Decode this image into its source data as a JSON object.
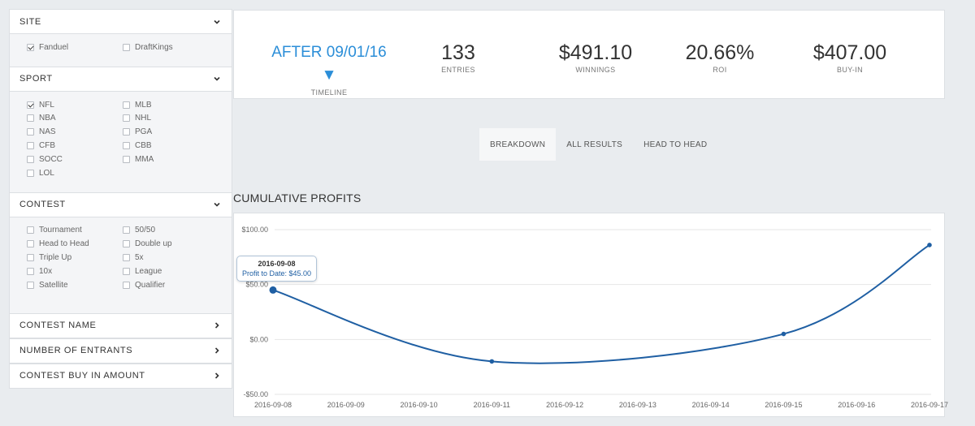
{
  "sidebar": {
    "site": {
      "title": "SITE",
      "options": [
        {
          "label": "Fanduel",
          "checked": true
        },
        {
          "label": "DraftKings",
          "checked": false
        }
      ]
    },
    "sport": {
      "title": "SPORT",
      "options": [
        {
          "label": "NFL",
          "checked": true
        },
        {
          "label": "MLB",
          "checked": false
        },
        {
          "label": "NBA",
          "checked": false
        },
        {
          "label": "NHL",
          "checked": false
        },
        {
          "label": "NAS",
          "checked": false
        },
        {
          "label": "PGA",
          "checked": false
        },
        {
          "label": "CFB",
          "checked": false
        },
        {
          "label": "CBB",
          "checked": false
        },
        {
          "label": "SOCC",
          "checked": false
        },
        {
          "label": "MMA",
          "checked": false
        },
        {
          "label": "LOL",
          "checked": false
        }
      ]
    },
    "contest": {
      "title": "CONTEST",
      "options": [
        {
          "label": "Tournament",
          "checked": false
        },
        {
          "label": "50/50",
          "checked": false
        },
        {
          "label": "Head to Head",
          "checked": false
        },
        {
          "label": "Double up",
          "checked": false
        },
        {
          "label": "Triple Up",
          "checked": false
        },
        {
          "label": "5x",
          "checked": false
        },
        {
          "label": "10x",
          "checked": false
        },
        {
          "label": "League",
          "checked": false
        },
        {
          "label": "Satellite",
          "checked": false
        },
        {
          "label": "Qualifier",
          "checked": false
        }
      ]
    },
    "contest_name": "CONTEST NAME",
    "number_of_entrants": "NUMBER OF ENTRANTS",
    "contest_buy_in": "CONTEST BUY IN AMOUNT"
  },
  "stats": {
    "timeline": {
      "value": "AFTER 09/01/16 ▼",
      "label": "TIMELINE"
    },
    "entries": {
      "value": "133",
      "label": "ENTRIES"
    },
    "winnings": {
      "value": "$491.10",
      "label": "WINNINGS"
    },
    "roi": {
      "value": "20.66%",
      "label": "ROI"
    },
    "buyin": {
      "value": "$407.00",
      "label": "BUY-IN"
    }
  },
  "tabs": [
    "BREAKDOWN",
    "ALL RESULTS",
    "HEAD TO HEAD"
  ],
  "active_tab": "BREAKDOWN",
  "chart_title": "CUMULATIVE PROFITS",
  "tooltip": {
    "date": "2016-09-08",
    "text": "Profit to Date: $45.00"
  },
  "colors": {
    "accent": "#2b8ed8",
    "line": "#1f5fa3"
  },
  "chart_data": {
    "type": "line",
    "title": "CUMULATIVE PROFITS",
    "x": [
      "2016-09-08",
      "2016-09-09",
      "2016-09-10",
      "2016-09-11",
      "2016-09-12",
      "2016-09-13",
      "2016-09-14",
      "2016-09-15",
      "2016-09-16",
      "2016-09-17"
    ],
    "ylim": [
      -50,
      100
    ],
    "yticks": [
      100,
      50,
      0,
      -50
    ],
    "ytick_labels": [
      "$100.00",
      "$50.00",
      "$0.00",
      "-$50.00"
    ],
    "points": [
      {
        "x": "2016-09-08",
        "y": 45
      },
      {
        "x": "2016-09-11",
        "y": -20
      },
      {
        "x": "2016-09-15",
        "y": 5
      },
      {
        "x": "2016-09-17",
        "y": 86
      }
    ],
    "grid": true
  }
}
